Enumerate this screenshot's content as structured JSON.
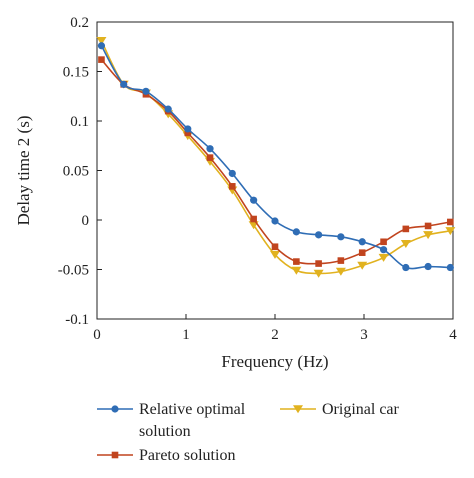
{
  "chart_data": {
    "type": "line",
    "xlabel": "Frequency (Hz)",
    "ylabel": "Delay time 2 (s)",
    "xlim": [
      0,
      4
    ],
    "ylim": [
      -0.1,
      0.2
    ],
    "xticks": [
      "0",
      "1",
      "2",
      "3",
      "4"
    ],
    "yticks": [
      "-0.1",
      "-0.05",
      "0",
      "0.05",
      "0.1",
      "0.15",
      "0.2"
    ],
    "grid": false,
    "legend_position": "bottom",
    "series": [
      {
        "name": "Relative optimal solution",
        "name_lines": [
          "Relative optimal",
          "solution"
        ],
        "color": "#2f6db5",
        "marker": "circle",
        "x": [
          0.05,
          0.3,
          0.55,
          0.8,
          1.02,
          1.27,
          1.52,
          1.76,
          2.0,
          2.24,
          2.49,
          2.74,
          2.98,
          3.22,
          3.47,
          3.72,
          3.97
        ],
        "y": [
          0.176,
          0.137,
          0.13,
          0.112,
          0.092,
          0.072,
          0.047,
          0.02,
          -0.001,
          -0.012,
          -0.015,
          -0.017,
          -0.022,
          -0.03,
          -0.048,
          -0.047,
          -0.048
        ]
      },
      {
        "name": "Original car",
        "color": "#e1b21f",
        "marker": "triangle-down",
        "x": [
          0.05,
          0.3,
          0.55,
          0.8,
          1.02,
          1.27,
          1.52,
          1.76,
          2.0,
          2.24,
          2.49,
          2.74,
          2.98,
          3.22,
          3.47,
          3.72,
          3.97
        ],
        "y": [
          0.181,
          0.137,
          0.128,
          0.107,
          0.085,
          0.059,
          0.03,
          -0.005,
          -0.035,
          -0.051,
          -0.054,
          -0.052,
          -0.046,
          -0.038,
          -0.024,
          -0.015,
          -0.011
        ]
      },
      {
        "name": "Pareto solution",
        "color": "#c1441e",
        "marker": "square",
        "x": [
          0.05,
          0.3,
          0.55,
          0.8,
          1.02,
          1.27,
          1.52,
          1.76,
          2.0,
          2.24,
          2.49,
          2.74,
          2.98,
          3.22,
          3.47,
          3.72,
          3.97
        ],
        "y": [
          0.162,
          0.137,
          0.127,
          0.11,
          0.088,
          0.063,
          0.034,
          0.001,
          -0.027,
          -0.042,
          -0.044,
          -0.041,
          -0.033,
          -0.022,
          -0.009,
          -0.006,
          -0.002
        ]
      }
    ]
  }
}
